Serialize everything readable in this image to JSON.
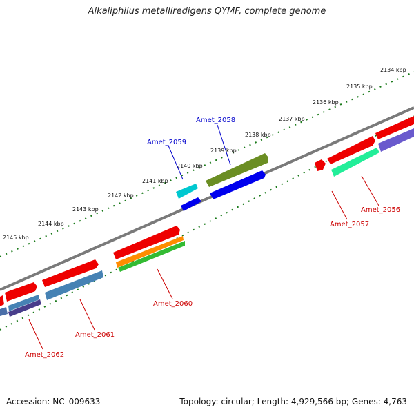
{
  "title": "Alkaliphilus metalliredigens QYMF, complete genome",
  "footer": {
    "accession": "Accession: NC_009633",
    "summary": "Topology: circular; Length: 4,929,566 bp; Genes: 4,763"
  },
  "tick_labels": [
    "2134 kbp",
    "2135 kbp",
    "2136 kbp",
    "2137 kbp",
    "2138 kbp",
    "2139 kbp",
    "2140 kbp",
    "2141 kbp",
    "2142 kbp",
    "2143 kbp",
    "2144 kbp",
    "2145 kbp"
  ],
  "gene_labels": {
    "amet_2056": "Amet_2056",
    "amet_2057": "Amet_2057",
    "amet_2058": "Amet_2058",
    "amet_2059": "Amet_2059",
    "amet_2060": "Amet_2060",
    "amet_2061": "Amet_2061",
    "amet_2062": "Amet_2062"
  },
  "colors": {
    "backbone": "#808080",
    "tick_dots": "#1a7a1a",
    "forward_label": "#0000cc",
    "reverse_label": "#cc0000",
    "red": "#ee0000",
    "blue": "#0000ee",
    "olive": "#6b8e23",
    "cyan": "#00c8d0",
    "orange": "#ff8c00",
    "green": "#33bb33",
    "steelblue": "#4682b4",
    "slateblue": "#6a5acd",
    "darkslateblue": "#483d8b",
    "aquamarine": "#22ee99"
  }
}
